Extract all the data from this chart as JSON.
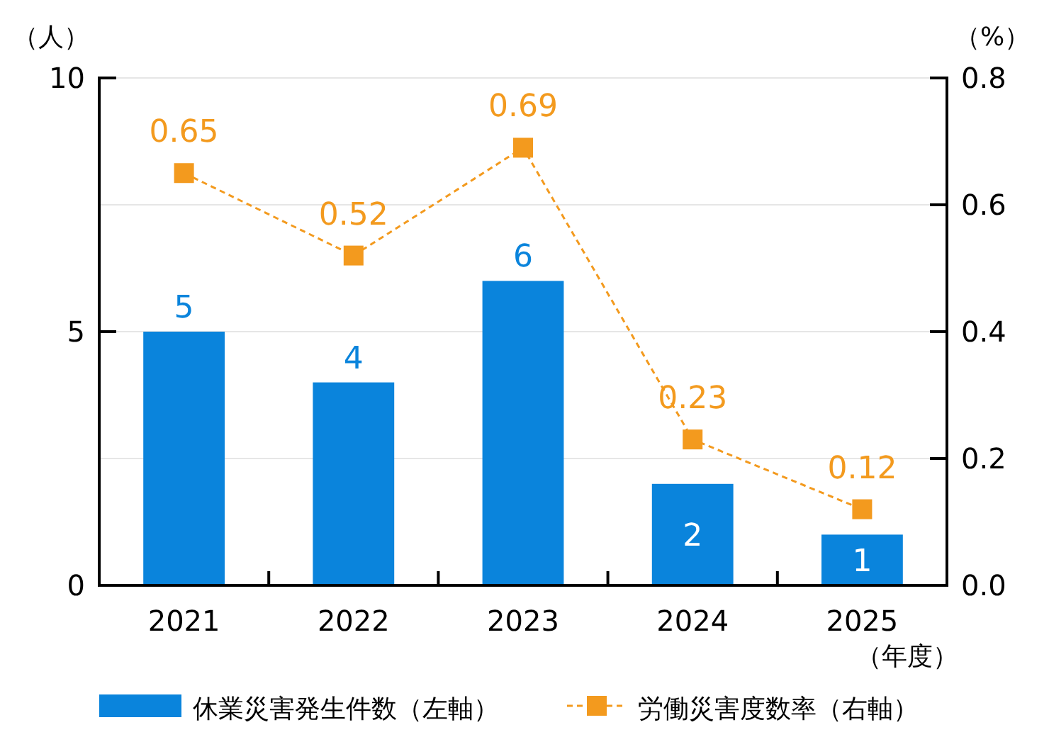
{
  "chart_data": {
    "type": "bar",
    "categories": [
      "2021",
      "2022",
      "2023",
      "2024",
      "2025"
    ],
    "xlabel": "（年度）",
    "ylabel": "（人）",
    "y2label": "（%）",
    "series": [
      {
        "name": "休業災害発生件数（左軸）",
        "color": "#0a84dc",
        "values": [
          5,
          4,
          6,
          2,
          1
        ]
      },
      {
        "name": "労働災害度数率（右軸）",
        "type": "line",
        "axis": "y2",
        "color": "#f39a1e",
        "values": [
          0.65,
          0.52,
          0.69,
          0.23,
          0.12
        ],
        "marker": "square",
        "line_style": "dashed"
      }
    ],
    "ylim": [
      0,
      10
    ],
    "yticks": [
      0,
      5,
      10
    ],
    "y2lim": [
      0,
      0.8
    ],
    "y2ticks": [
      {
        "value": 0,
        "label": "0.0"
      },
      0.2,
      0.4,
      0.6,
      0.8
    ],
    "grid": "y",
    "legend": "bottom",
    "data_labels": true
  }
}
